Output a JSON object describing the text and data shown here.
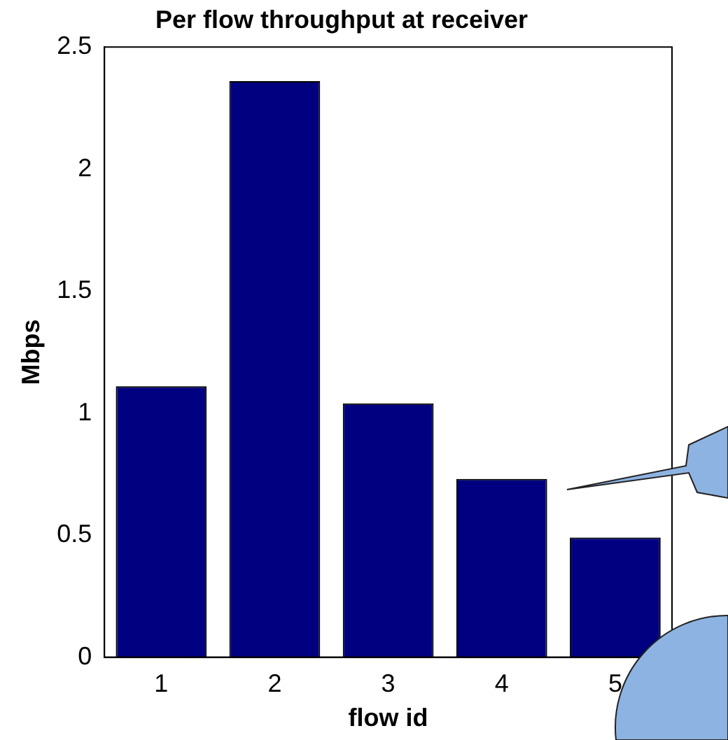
{
  "chart_data": {
    "type": "bar",
    "title": "Per flow throughput at receiver",
    "xlabel": "flow id",
    "ylabel": "Mbps",
    "categories": [
      "1",
      "2",
      "3",
      "4",
      "5"
    ],
    "values": [
      1.11,
      2.36,
      1.04,
      0.73,
      0.49
    ],
    "color": "#000080",
    "ylim": [
      0,
      2.5
    ],
    "yticks": [
      0,
      0.5,
      1,
      1.5,
      2,
      2.5
    ]
  }
}
